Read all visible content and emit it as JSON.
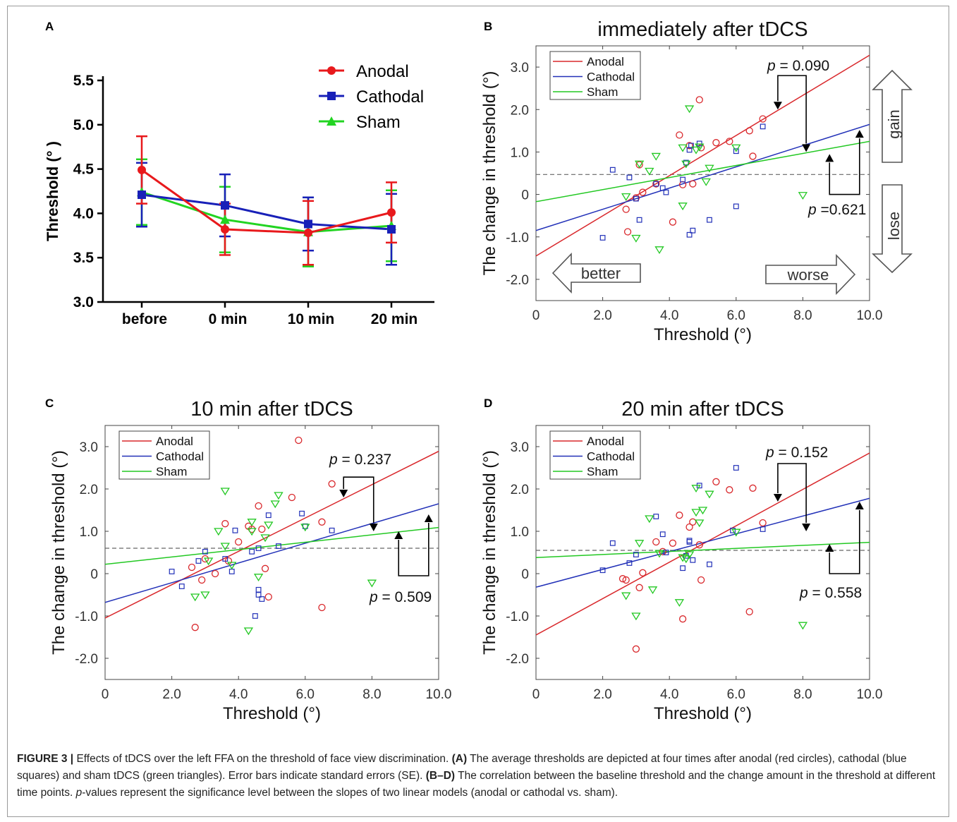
{
  "panel_labels": [
    "A",
    "B",
    "C",
    "D"
  ],
  "chart_data": [
    {
      "id": "A",
      "type": "line",
      "title": "",
      "xlabel": "",
      "ylabel": "Threshold (° )",
      "categories": [
        "before",
        "0 min",
        "10 min",
        "20 min"
      ],
      "ylim": [
        3.0,
        5.5
      ],
      "yticks": [
        "3.0",
        "3.5",
        "4.0",
        "4.5",
        "5.0",
        "5.5"
      ],
      "legend_position": "top-right",
      "series": [
        {
          "name": "Anodal",
          "color": "#e8191c",
          "marker": "circle",
          "values": [
            4.49,
            3.82,
            3.78,
            4.01
          ],
          "errors": [
            0.38,
            0.29,
            0.36,
            0.34
          ]
        },
        {
          "name": "Cathodal",
          "color": "#1820b8",
          "marker": "square",
          "values": [
            4.21,
            4.09,
            3.88,
            3.82
          ],
          "errors": [
            0.36,
            0.35,
            0.3,
            0.4
          ]
        },
        {
          "name": "Sham",
          "color": "#22d422",
          "marker": "triangle",
          "values": [
            4.24,
            3.93,
            3.79,
            3.86
          ],
          "errors": [
            0.37,
            0.37,
            0.39,
            0.4
          ]
        }
      ]
    },
    {
      "id": "B",
      "type": "scatter",
      "title": "immediately after tDCS",
      "xlabel": "Threshold (°)",
      "ylabel": "The change in threshold (°)",
      "xlim": [
        0,
        10
      ],
      "ylim": [
        -2.5,
        3.5
      ],
      "xticks": [
        "0",
        "2.0",
        "4.0",
        "6.0",
        "8.0",
        "10.0"
      ],
      "yticks": [
        "-2.0",
        "-1.0",
        "0",
        "1.0",
        "2.0",
        "3.0"
      ],
      "reference_line_y": 0.47,
      "legend_position": "top-left",
      "series": [
        {
          "name": "Anodal",
          "color": "#d9282c",
          "marker": "circle",
          "line": [
            -1.45,
            0.473
          ],
          "points": [
            [
              2.7,
              -0.35
            ],
            [
              2.75,
              -0.88
            ],
            [
              3.0,
              -0.08
            ],
            [
              3.1,
              0.7
            ],
            [
              3.2,
              0.05
            ],
            [
              3.6,
              0.25
            ],
            [
              4.1,
              -0.65
            ],
            [
              4.3,
              1.4
            ],
            [
              4.4,
              0.23
            ],
            [
              4.6,
              1.15
            ],
            [
              4.7,
              0.25
            ],
            [
              4.9,
              2.23
            ],
            [
              4.95,
              1.1
            ],
            [
              5.4,
              1.22
            ],
            [
              5.8,
              1.25
            ],
            [
              6.4,
              1.5
            ],
            [
              6.5,
              0.9
            ],
            [
              6.8,
              1.78
            ]
          ]
        },
        {
          "name": "Cathodal",
          "color": "#2231b8",
          "marker": "square",
          "line": [
            -0.85,
            0.25
          ],
          "points": [
            [
              2.0,
              -1.02
            ],
            [
              2.3,
              0.58
            ],
            [
              2.8,
              0.4
            ],
            [
              3.0,
              -0.1
            ],
            [
              3.1,
              -0.6
            ],
            [
              3.6,
              0.25
            ],
            [
              3.8,
              0.15
            ],
            [
              3.9,
              0.05
            ],
            [
              4.4,
              0.35
            ],
            [
              4.5,
              0.75
            ],
            [
              4.6,
              -0.95
            ],
            [
              4.6,
              1.05
            ],
            [
              4.65,
              1.15
            ],
            [
              4.7,
              -0.85
            ],
            [
              4.9,
              1.2
            ],
            [
              5.2,
              -0.6
            ],
            [
              6.0,
              1.02
            ],
            [
              6.0,
              -0.28
            ],
            [
              6.8,
              1.6
            ]
          ]
        },
        {
          "name": "Sham",
          "color": "#22c822",
          "marker": "triangle-down",
          "line": [
            -0.17,
            0.142
          ],
          "points": [
            [
              2.7,
              -0.05
            ],
            [
              3.0,
              -1.03
            ],
            [
              3.1,
              0.72
            ],
            [
              3.4,
              0.55
            ],
            [
              3.6,
              0.9
            ],
            [
              3.7,
              -1.3
            ],
            [
              4.4,
              1.1
            ],
            [
              4.4,
              -0.27
            ],
            [
              4.5,
              0.72
            ],
            [
              4.6,
              2.02
            ],
            [
              4.8,
              1.05
            ],
            [
              4.9,
              1.12
            ],
            [
              5.1,
              0.3
            ],
            [
              5.2,
              0.62
            ],
            [
              6.0,
              1.1
            ],
            [
              8.0,
              -0.02
            ]
          ]
        }
      ],
      "annotations": [
        "p = 0.090",
        "p =0.621",
        "better",
        "worse",
        "gain",
        "lose"
      ]
    },
    {
      "id": "C",
      "type": "scatter",
      "title": "10 min after tDCS",
      "xlabel": "Threshold (°)",
      "ylabel": "The change in threshold (°)",
      "xlim": [
        0,
        10
      ],
      "ylim": [
        -2.5,
        3.5
      ],
      "xticks": [
        "0",
        "2.0",
        "4.0",
        "6.0",
        "8.0",
        "10.0"
      ],
      "yticks": [
        "-2.0",
        "-1.0",
        "0",
        "1.0",
        "2.0",
        "3.0"
      ],
      "reference_line_y": 0.6,
      "legend_position": "top-left",
      "series": [
        {
          "name": "Anodal",
          "color": "#d9282c",
          "marker": "circle",
          "line": [
            -1.05,
            0.394
          ],
          "points": [
            [
              2.6,
              0.15
            ],
            [
              2.7,
              -1.27
            ],
            [
              2.9,
              -0.15
            ],
            [
              3.0,
              0.35
            ],
            [
              3.3,
              0.0
            ],
            [
              3.6,
              1.18
            ],
            [
              3.7,
              0.3
            ],
            [
              4.0,
              0.75
            ],
            [
              4.3,
              1.12
            ],
            [
              4.4,
              1.05
            ],
            [
              4.6,
              1.6
            ],
            [
              4.7,
              1.05
            ],
            [
              4.8,
              0.12
            ],
            [
              4.9,
              -0.55
            ],
            [
              5.6,
              1.8
            ],
            [
              5.8,
              3.15
            ],
            [
              6.5,
              1.22
            ],
            [
              6.5,
              -0.8
            ],
            [
              6.8,
              2.12
            ]
          ]
        },
        {
          "name": "Cathodal",
          "color": "#2231b8",
          "marker": "square",
          "line": [
            -0.68,
            0.233
          ],
          "points": [
            [
              2.0,
              0.05
            ],
            [
              2.3,
              -0.3
            ],
            [
              2.8,
              0.3
            ],
            [
              3.0,
              0.52
            ],
            [
              3.6,
              0.35
            ],
            [
              3.8,
              0.05
            ],
            [
              3.9,
              1.02
            ],
            [
              4.4,
              0.52
            ],
            [
              4.5,
              -1.0
            ],
            [
              4.6,
              -0.38
            ],
            [
              4.6,
              0.6
            ],
            [
              4.6,
              -0.5
            ],
            [
              4.7,
              -0.6
            ],
            [
              4.9,
              1.38
            ],
            [
              5.2,
              0.65
            ],
            [
              5.9,
              1.42
            ],
            [
              6.0,
              1.12
            ],
            [
              6.8,
              1.02
            ]
          ]
        },
        {
          "name": "Sham",
          "color": "#22c822",
          "marker": "triangle-down",
          "line": [
            0.22,
            0.087
          ],
          "points": [
            [
              2.7,
              -0.55
            ],
            [
              3.0,
              -0.5
            ],
            [
              3.1,
              0.3
            ],
            [
              3.4,
              1.0
            ],
            [
              3.6,
              0.65
            ],
            [
              3.6,
              1.95
            ],
            [
              3.8,
              0.2
            ],
            [
              4.3,
              -1.35
            ],
            [
              4.4,
              1.22
            ],
            [
              4.4,
              1.0
            ],
            [
              4.6,
              -0.08
            ],
            [
              4.8,
              0.85
            ],
            [
              4.9,
              1.15
            ],
            [
              5.1,
              1.65
            ],
            [
              5.2,
              1.85
            ],
            [
              6.0,
              1.1
            ],
            [
              8.0,
              -0.22
            ]
          ]
        }
      ],
      "annotations": [
        "p = 0.237",
        "p = 0.509"
      ]
    },
    {
      "id": "D",
      "type": "scatter",
      "title": "20 min after tDCS",
      "xlabel": "Threshold (°)",
      "ylabel": "The change in threshold (°)",
      "xlim": [
        0,
        10
      ],
      "ylim": [
        -2.5,
        3.5
      ],
      "xticks": [
        "0",
        "2.0",
        "4.0",
        "6.0",
        "8.0",
        "10.0"
      ],
      "yticks": [
        "-2.0",
        "-1.0",
        "0",
        "1.0",
        "2.0",
        "3.0"
      ],
      "reference_line_y": 0.55,
      "legend_position": "top-left",
      "series": [
        {
          "name": "Anodal",
          "color": "#d9282c",
          "marker": "circle",
          "line": [
            -1.45,
            0.43
          ],
          "points": [
            [
              2.6,
              -0.12
            ],
            [
              2.7,
              -0.15
            ],
            [
              3.0,
              -1.78
            ],
            [
              3.1,
              -0.33
            ],
            [
              3.2,
              0.02
            ],
            [
              3.6,
              0.75
            ],
            [
              3.8,
              0.52
            ],
            [
              4.1,
              0.72
            ],
            [
              4.3,
              1.38
            ],
            [
              4.4,
              -1.07
            ],
            [
              4.6,
              1.1
            ],
            [
              4.7,
              1.22
            ],
            [
              4.9,
              0.68
            ],
            [
              4.95,
              -0.15
            ],
            [
              5.4,
              2.17
            ],
            [
              5.8,
              1.98
            ],
            [
              6.4,
              -0.9
            ],
            [
              6.5,
              2.02
            ],
            [
              6.8,
              1.2
            ]
          ]
        },
        {
          "name": "Cathodal",
          "color": "#2231b8",
          "marker": "square",
          "line": [
            -0.32,
            0.21
          ],
          "points": [
            [
              2.0,
              0.08
            ],
            [
              2.3,
              0.72
            ],
            [
              2.8,
              0.25
            ],
            [
              3.0,
              0.45
            ],
            [
              3.6,
              1.35
            ],
            [
              3.8,
              0.93
            ],
            [
              3.9,
              0.5
            ],
            [
              4.4,
              0.13
            ],
            [
              4.5,
              0.42
            ],
            [
              4.6,
              0.75
            ],
            [
              4.6,
              0.78
            ],
            [
              4.7,
              0.32
            ],
            [
              4.9,
              2.08
            ],
            [
              5.2,
              0.22
            ],
            [
              5.9,
              1.02
            ],
            [
              6.0,
              2.5
            ],
            [
              6.8,
              1.05
            ]
          ]
        },
        {
          "name": "Sham",
          "color": "#22c822",
          "marker": "triangle-down",
          "line": [
            0.38,
            0.036
          ],
          "points": [
            [
              2.7,
              -0.52
            ],
            [
              3.0,
              -1.0
            ],
            [
              3.1,
              0.72
            ],
            [
              3.4,
              1.3
            ],
            [
              3.5,
              -0.38
            ],
            [
              3.7,
              0.48
            ],
            [
              4.3,
              -0.68
            ],
            [
              4.4,
              0.38
            ],
            [
              4.5,
              0.35
            ],
            [
              4.6,
              0.45
            ],
            [
              4.8,
              2.02
            ],
            [
              4.8,
              1.45
            ],
            [
              4.9,
              1.2
            ],
            [
              5.0,
              1.5
            ],
            [
              5.2,
              1.88
            ],
            [
              6.0,
              0.98
            ],
            [
              8.0,
              -1.22
            ]
          ]
        }
      ],
      "annotations": [
        "p = 0.152",
        "p = 0.558"
      ]
    }
  ],
  "caption": {
    "lead": "FIGURE 3 |",
    "parts": [
      {
        "b": false,
        "t": " Effects of tDCS over the left FFA on the threshold of face view discrimination. "
      },
      {
        "b": true,
        "t": "(A)"
      },
      {
        "b": false,
        "t": " The average thresholds are depicted at four times after anodal (red circles), cathodal (blue squares) and sham tDCS (green triangles). Error bars indicate standard errors (SE). "
      },
      {
        "b": true,
        "t": "(B–D)"
      },
      {
        "b": false,
        "t": " The correlation between the baseline threshold and the change amount in the threshold at different time points. "
      },
      {
        "i": true,
        "t": "p"
      },
      {
        "b": false,
        "t": "-values represent the significance level between the slopes of two linear models (anodal or cathodal vs. sham)."
      }
    ]
  }
}
